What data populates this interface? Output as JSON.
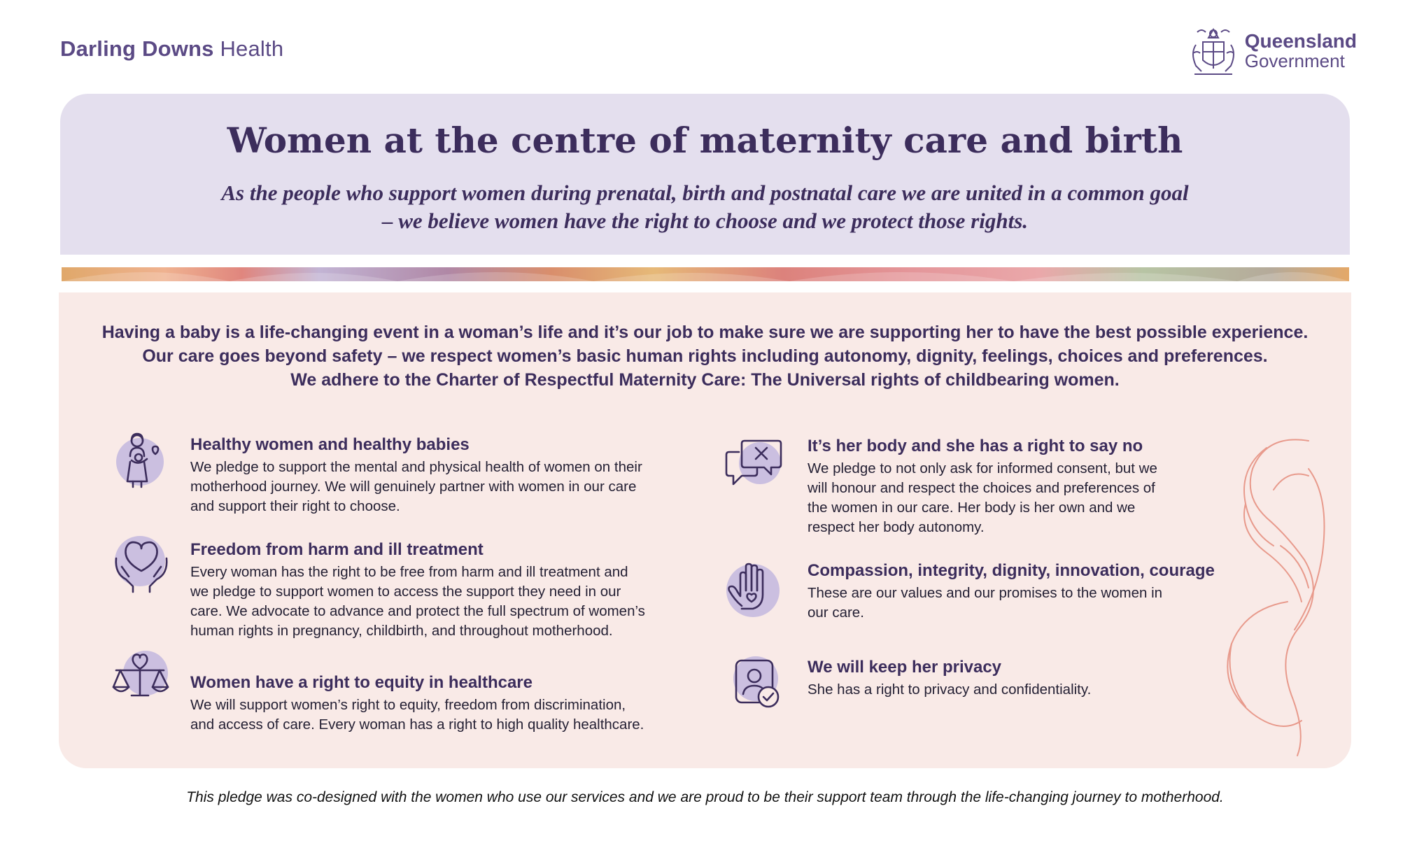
{
  "brand": {
    "org_bold": "Darling Downs",
    "org_regular": "Health",
    "gov_line1": "Queensland",
    "gov_line2": "Government"
  },
  "header": {
    "title": "Women at the centre of maternity care and birth",
    "subtitle_line1": "As the people who support women during prenatal, birth and postnatal care we are united in a common goal",
    "subtitle_line2": "– we believe women have the right to choose and we protect those rights."
  },
  "intro": {
    "line1": "Having a baby is a life-changing event in a woman’s life and it’s our job to make sure we are supporting her to have the best possible experience.",
    "line2": "Our care goes beyond safety – we respect women’s basic human rights including autonomy, dignity, feelings, choices and preferences.",
    "line3": "We adhere to the Charter of Respectful Maternity Care: The Universal rights of childbearing women."
  },
  "left_items": [
    {
      "icon": "mother-baby-icon",
      "title": "Healthy women and healthy babies",
      "lines": [
        "We pledge to support the mental and physical health of women on their",
        "motherhood journey. We will genuinely partner with women in our care",
        "and support their right to choose."
      ]
    },
    {
      "icon": "heart-hands-icon",
      "title": "Freedom from harm and ill treatment",
      "lines": [
        "Every woman has the right to be free from harm and ill treatment and",
        "we pledge to support women to access the support they need in our",
        "care. We advocate to advance and protect the full spectrum of women’s",
        "human rights in pregnancy, childbirth, and throughout motherhood."
      ]
    },
    {
      "icon": "scales-heart-icon",
      "title": "Women have a right to equity in healthcare",
      "lines": [
        "We will support women’s right to equity, freedom from discrimination,",
        "and access of care. Every woman has a right to high quality healthcare."
      ]
    }
  ],
  "right_items": [
    {
      "icon": "speech-bubble-x-icon",
      "title": "It’s her body and she has a right to say no",
      "lines": [
        "We pledge to not only ask for informed consent, but we",
        "will honour and respect the choices and preferences of",
        "the women in our care. Her body is her own and we",
        "respect her body autonomy."
      ]
    },
    {
      "icon": "hand-heart-icon",
      "title": "Compassion, integrity, dignity, innovation, courage",
      "lines": [
        "These are our values and our promises to the women in",
        "our care."
      ]
    },
    {
      "icon": "privacy-shield-icon",
      "title": "We will keep her privacy",
      "lines": [
        "She has a right to privacy and confidentiality."
      ]
    }
  ],
  "footer": {
    "text": "This pledge was co-designed with the women who use our services and we are proud to be their support team through the life-changing journey to motherhood."
  },
  "colors": {
    "primary_purple": "#3c2d5c",
    "header_lavender": "#e4dfee",
    "panel_pink": "#f9eae7",
    "icon_blob": "#cbbfe0",
    "art_coral": "#e89a8c"
  }
}
